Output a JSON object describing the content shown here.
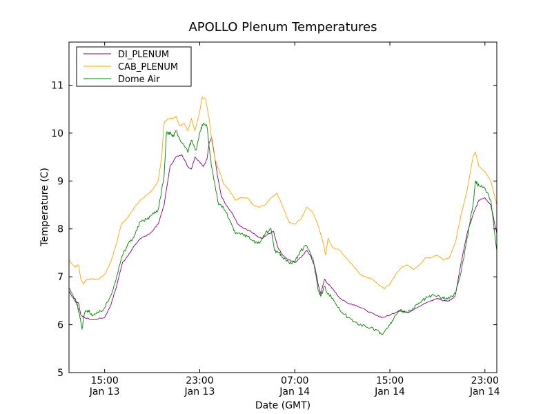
{
  "chart_data": {
    "type": "line",
    "title": "APOLLO Plenum Temperatures",
    "xlabel": "Date (GMT)",
    "ylabel": "Temperature (C)",
    "x_unit": "hours since 2014-01-13 12:00 GMT",
    "xlim": [
      0,
      36
    ],
    "ylim": [
      5,
      11.9
    ],
    "yticks": [
      5,
      6,
      7,
      8,
      9,
      10,
      11
    ],
    "xticks": [
      {
        "x": 3,
        "time": "15:00",
        "date": "Jan 13"
      },
      {
        "x": 11,
        "time": "23:00",
        "date": "Jan 13"
      },
      {
        "x": 19,
        "time": "07:00",
        "date": "Jan 14"
      },
      {
        "x": 27,
        "time": "15:00",
        "date": "Jan 14"
      },
      {
        "x": 35,
        "time": "23:00",
        "date": "Jan 14"
      }
    ],
    "legend_position": "top-left",
    "series": [
      {
        "name": "DI_PLENUM",
        "color": "#800080",
        "points": [
          [
            0,
            6.7
          ],
          [
            0.5,
            6.5
          ],
          [
            0.8,
            6.45
          ],
          [
            1,
            6.2
          ],
          [
            1.3,
            6.15
          ],
          [
            2,
            6.1
          ],
          [
            3,
            6.15
          ],
          [
            3.5,
            6.4
          ],
          [
            4,
            6.8
          ],
          [
            4.5,
            7.3
          ],
          [
            5,
            7.45
          ],
          [
            5.5,
            7.65
          ],
          [
            6,
            7.8
          ],
          [
            6.5,
            7.85
          ],
          [
            7,
            7.95
          ],
          [
            7.5,
            8.1
          ],
          [
            8,
            8.5
          ],
          [
            8.5,
            9.3
          ],
          [
            9,
            9.5
          ],
          [
            9.5,
            9.55
          ],
          [
            10,
            9.3
          ],
          [
            10.3,
            9.25
          ],
          [
            10.6,
            9.5
          ],
          [
            11,
            9.4
          ],
          [
            11.3,
            9.3
          ],
          [
            11.6,
            9.45
          ],
          [
            11.8,
            9.8
          ],
          [
            12,
            9.9
          ],
          [
            12.2,
            9.6
          ],
          [
            12.5,
            9.1
          ],
          [
            12.8,
            8.7
          ],
          [
            13.2,
            8.5
          ],
          [
            13.8,
            8.3
          ],
          [
            14.2,
            8.1
          ],
          [
            14.8,
            8.0
          ],
          [
            15.3,
            7.95
          ],
          [
            15.8,
            7.85
          ],
          [
            16.2,
            7.8
          ],
          [
            16.8,
            7.9
          ],
          [
            17.2,
            7.95
          ],
          [
            17.6,
            7.6
          ],
          [
            18,
            7.45
          ],
          [
            18.5,
            7.35
          ],
          [
            19,
            7.3
          ],
          [
            19.5,
            7.4
          ],
          [
            20,
            7.55
          ],
          [
            20.3,
            7.45
          ],
          [
            20.7,
            7.2
          ],
          [
            21,
            6.8
          ],
          [
            21.2,
            6.65
          ],
          [
            21.5,
            6.95
          ],
          [
            21.8,
            6.85
          ],
          [
            22.2,
            6.75
          ],
          [
            22.8,
            6.55
          ],
          [
            23.5,
            6.45
          ],
          [
            24.2,
            6.4
          ],
          [
            25,
            6.3
          ],
          [
            25.8,
            6.2
          ],
          [
            26.4,
            6.15
          ],
          [
            27,
            6.2
          ],
          [
            27.8,
            6.3
          ],
          [
            28.5,
            6.25
          ],
          [
            29.2,
            6.35
          ],
          [
            30,
            6.45
          ],
          [
            30.5,
            6.5
          ],
          [
            31,
            6.55
          ],
          [
            31.5,
            6.5
          ],
          [
            32,
            6.5
          ],
          [
            32.5,
            6.6
          ],
          [
            33,
            7.3
          ],
          [
            33.5,
            7.9
          ],
          [
            34,
            8.3
          ],
          [
            34.5,
            8.6
          ],
          [
            35,
            8.65
          ],
          [
            35.5,
            8.5
          ],
          [
            36,
            7.9
          ]
        ]
      },
      {
        "name": "CAB_PLENUM",
        "color": "#ffa500",
        "points": [
          [
            0,
            7.35
          ],
          [
            0.5,
            7.2
          ],
          [
            0.8,
            7.25
          ],
          [
            1,
            6.95
          ],
          [
            1.2,
            6.85
          ],
          [
            1.5,
            6.95
          ],
          [
            2,
            6.95
          ],
          [
            2.5,
            6.95
          ],
          [
            3,
            7.05
          ],
          [
            3.5,
            7.3
          ],
          [
            4,
            7.7
          ],
          [
            4.4,
            8.1
          ],
          [
            5,
            8.25
          ],
          [
            5.5,
            8.45
          ],
          [
            6,
            8.6
          ],
          [
            6.5,
            8.7
          ],
          [
            7,
            8.8
          ],
          [
            7.5,
            9.0
          ],
          [
            7.8,
            9.5
          ],
          [
            8,
            10.2
          ],
          [
            8.3,
            10.3
          ],
          [
            8.7,
            10.3
          ],
          [
            9,
            10.35
          ],
          [
            9.3,
            10.15
          ],
          [
            9.7,
            10.2
          ],
          [
            10,
            10.05
          ],
          [
            10.3,
            10.3
          ],
          [
            10.6,
            10.05
          ],
          [
            11,
            10.45
          ],
          [
            11.2,
            10.75
          ],
          [
            11.5,
            10.7
          ],
          [
            11.8,
            10.3
          ],
          [
            12,
            9.85
          ],
          [
            12.3,
            9.45
          ],
          [
            12.6,
            9.25
          ],
          [
            13,
            8.95
          ],
          [
            13.5,
            8.8
          ],
          [
            14,
            8.6
          ],
          [
            14.5,
            8.65
          ],
          [
            15,
            8.65
          ],
          [
            15.5,
            8.5
          ],
          [
            16,
            8.45
          ],
          [
            16.5,
            8.5
          ],
          [
            17,
            8.65
          ],
          [
            17.5,
            8.75
          ],
          [
            18,
            8.45
          ],
          [
            18.5,
            8.15
          ],
          [
            19,
            8.1
          ],
          [
            19.5,
            8.2
          ],
          [
            20,
            8.45
          ],
          [
            20.5,
            8.35
          ],
          [
            21,
            8.05
          ],
          [
            21.4,
            7.7
          ],
          [
            21.6,
            7.45
          ],
          [
            21.8,
            7.8
          ],
          [
            22.2,
            7.6
          ],
          [
            22.8,
            7.55
          ],
          [
            23.3,
            7.4
          ],
          [
            24,
            7.2
          ],
          [
            24.5,
            7.05
          ],
          [
            25,
            7.0
          ],
          [
            25.5,
            6.95
          ],
          [
            26,
            6.85
          ],
          [
            26.5,
            6.75
          ],
          [
            27,
            6.85
          ],
          [
            27.5,
            7.05
          ],
          [
            28,
            7.2
          ],
          [
            28.5,
            7.25
          ],
          [
            29,
            7.15
          ],
          [
            29.5,
            7.25
          ],
          [
            30,
            7.4
          ],
          [
            30.5,
            7.4
          ],
          [
            31,
            7.45
          ],
          [
            31.5,
            7.35
          ],
          [
            32,
            7.4
          ],
          [
            32.5,
            7.7
          ],
          [
            33,
            8.3
          ],
          [
            33.5,
            8.8
          ],
          [
            34,
            9.5
          ],
          [
            34.2,
            9.6
          ],
          [
            34.5,
            9.3
          ],
          [
            35,
            9.2
          ],
          [
            35.5,
            9.0
          ],
          [
            36,
            8.5
          ]
        ]
      },
      {
        "name": "Dome Air",
        "color": "#008000",
        "points": [
          [
            0,
            6.75
          ],
          [
            0.5,
            6.55
          ],
          [
            0.7,
            6.4
          ],
          [
            0.9,
            6.2
          ],
          [
            1.1,
            5.9
          ],
          [
            1.3,
            6.25
          ],
          [
            1.6,
            6.3
          ],
          [
            2,
            6.2
          ],
          [
            2.5,
            6.25
          ],
          [
            3,
            6.35
          ],
          [
            3.5,
            6.6
          ],
          [
            4,
            7.0
          ],
          [
            4.5,
            7.45
          ],
          [
            5,
            7.7
          ],
          [
            5.5,
            7.85
          ],
          [
            6,
            8.15
          ],
          [
            6.5,
            8.2
          ],
          [
            7,
            8.3
          ],
          [
            7.5,
            8.4
          ],
          [
            8,
            9.1
          ],
          [
            8.2,
            10.0
          ],
          [
            8.5,
            10.0
          ],
          [
            8.8,
            9.95
          ],
          [
            9,
            10.05
          ],
          [
            9.5,
            9.8
          ],
          [
            10,
            9.6
          ],
          [
            10.3,
            9.85
          ],
          [
            10.7,
            9.65
          ],
          [
            11,
            10.0
          ],
          [
            11.3,
            10.2
          ],
          [
            11.6,
            10.15
          ],
          [
            11.8,
            9.7
          ],
          [
            12,
            9.3
          ],
          [
            12.3,
            8.9
          ],
          [
            12.6,
            8.5
          ],
          [
            13,
            8.45
          ],
          [
            13.5,
            8.2
          ],
          [
            14,
            7.9
          ],
          [
            14.5,
            7.9
          ],
          [
            15,
            7.85
          ],
          [
            15.5,
            7.75
          ],
          [
            16,
            7.7
          ],
          [
            16.5,
            7.9
          ],
          [
            17,
            8.0
          ],
          [
            17.3,
            7.55
          ],
          [
            17.7,
            7.5
          ],
          [
            18,
            7.4
          ],
          [
            18.5,
            7.3
          ],
          [
            19,
            7.3
          ],
          [
            19.5,
            7.55
          ],
          [
            20,
            7.65
          ],
          [
            20.5,
            7.4
          ],
          [
            20.8,
            7.0
          ],
          [
            21,
            6.7
          ],
          [
            21.2,
            6.6
          ],
          [
            21.5,
            6.8
          ],
          [
            21.8,
            6.65
          ],
          [
            22.2,
            6.55
          ],
          [
            22.8,
            6.3
          ],
          [
            23.5,
            6.15
          ],
          [
            24.2,
            6.05
          ],
          [
            25,
            5.95
          ],
          [
            25.8,
            5.9
          ],
          [
            26.4,
            5.8
          ],
          [
            27,
            6.0
          ],
          [
            27.5,
            6.2
          ],
          [
            28,
            6.3
          ],
          [
            28.5,
            6.25
          ],
          [
            29,
            6.35
          ],
          [
            29.5,
            6.45
          ],
          [
            30,
            6.55
          ],
          [
            30.5,
            6.6
          ],
          [
            31,
            6.6
          ],
          [
            31.5,
            6.55
          ],
          [
            32,
            6.55
          ],
          [
            32.5,
            6.65
          ],
          [
            33,
            7.1
          ],
          [
            33.5,
            7.8
          ],
          [
            34,
            8.5
          ],
          [
            34.2,
            9.0
          ],
          [
            34.5,
            8.9
          ],
          [
            35,
            8.85
          ],
          [
            35.5,
            8.6
          ],
          [
            36,
            7.55
          ]
        ]
      }
    ]
  }
}
